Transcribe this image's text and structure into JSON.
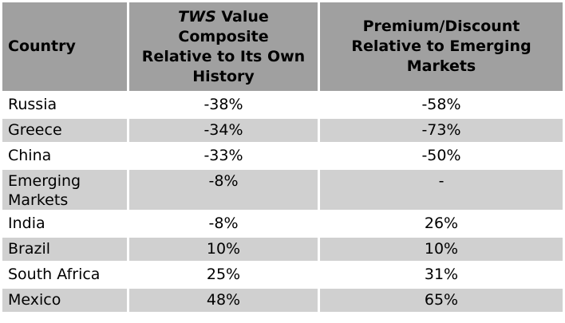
{
  "colors": {
    "header_bg": "#a0a0a0",
    "row_alt_bg": "#d0d0d0",
    "text": "#000000",
    "page_bg": "#ffffff"
  },
  "table": {
    "header": {
      "country": "Country",
      "col2_italic": "TWS",
      "col2_rest": " Value\nComposite\nRelative to Its Own\nHistory",
      "col3": "Premium/Discount\nRelative to Emerging\nMarkets"
    },
    "rows": [
      {
        "country": "Russia",
        "tws": "-38%",
        "premium": "-58%"
      },
      {
        "country": "Greece",
        "tws": "-34%",
        "premium": "-73%"
      },
      {
        "country": "China",
        "tws": "-33%",
        "premium": "-50%"
      },
      {
        "country": "Emerging Markets",
        "tws": "-8%",
        "premium": "-"
      },
      {
        "country": "India",
        "tws": "-8%",
        "premium": "26%"
      },
      {
        "country": "Brazil",
        "tws": "10%",
        "premium": "10%"
      },
      {
        "country": "South Africa",
        "tws": "25%",
        "premium": "31%"
      },
      {
        "country": "Mexico",
        "tws": "48%",
        "premium": "65%"
      }
    ]
  },
  "chart_data": {
    "type": "table",
    "columns": [
      "Country",
      "TWS Value Composite Relative to Its Own History",
      "Premium/Discount Relative to Emerging Markets"
    ],
    "rows": [
      [
        "Russia",
        "-38%",
        "-58%"
      ],
      [
        "Greece",
        "-34%",
        "-73%"
      ],
      [
        "China",
        "-33%",
        "-50%"
      ],
      [
        "Emerging Markets",
        "-8%",
        "-"
      ],
      [
        "India",
        "-8%",
        "26%"
      ],
      [
        "Brazil",
        "10%",
        "10%"
      ],
      [
        "South Africa",
        "25%",
        "31%"
      ],
      [
        "Mexico",
        "48%",
        "65%"
      ]
    ]
  }
}
